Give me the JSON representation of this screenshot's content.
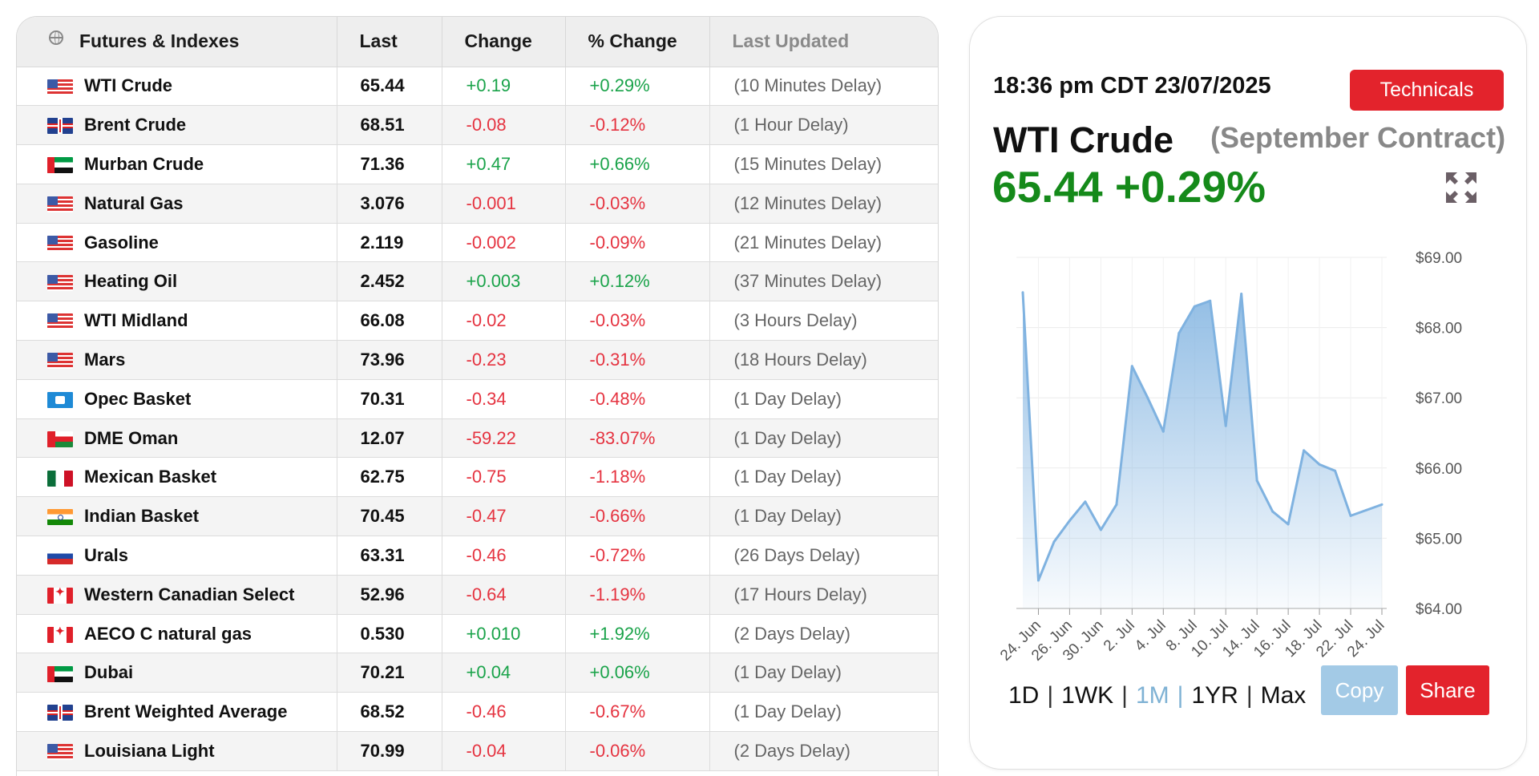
{
  "table": {
    "headers": [
      "Futures & Indexes",
      "Last",
      "Change",
      "% Change",
      "Last Updated"
    ],
    "rows": [
      {
        "flag": "us",
        "name": "WTI Crude",
        "last": "65.44",
        "change": "+0.19",
        "pct": "+0.29%",
        "updated": "(10 Minutes Delay)",
        "dir": "pos"
      },
      {
        "flag": "uk",
        "name": "Brent Crude",
        "last": "68.51",
        "change": "-0.08",
        "pct": "-0.12%",
        "updated": "(1 Hour Delay)",
        "dir": "neg"
      },
      {
        "flag": "ae",
        "name": "Murban Crude",
        "last": "71.36",
        "change": "+0.47",
        "pct": "+0.66%",
        "updated": "(15 Minutes Delay)",
        "dir": "pos"
      },
      {
        "flag": "us",
        "name": "Natural Gas",
        "last": "3.076",
        "change": "-0.001",
        "pct": "-0.03%",
        "updated": "(12 Minutes Delay)",
        "dir": "neg"
      },
      {
        "flag": "us",
        "name": "Gasoline",
        "last": "2.119",
        "change": "-0.002",
        "pct": "-0.09%",
        "updated": "(21 Minutes Delay)",
        "dir": "neg"
      },
      {
        "flag": "us",
        "name": "Heating Oil",
        "last": "2.452",
        "change": "+0.003",
        "pct": "+0.12%",
        "updated": "(37 Minutes Delay)",
        "dir": "pos"
      },
      {
        "flag": "us",
        "name": "WTI Midland",
        "last": "66.08",
        "change": "-0.02",
        "pct": "-0.03%",
        "updated": "(3 Hours Delay)",
        "dir": "neg"
      },
      {
        "flag": "us",
        "name": "Mars",
        "last": "73.96",
        "change": "-0.23",
        "pct": "-0.31%",
        "updated": "(18 Hours Delay)",
        "dir": "neg"
      },
      {
        "flag": "opec",
        "name": "Opec Basket",
        "last": "70.31",
        "change": "-0.34",
        "pct": "-0.48%",
        "updated": "(1 Day Delay)",
        "dir": "neg"
      },
      {
        "flag": "om",
        "name": "DME Oman",
        "last": "12.07",
        "change": "-59.22",
        "pct": "-83.07%",
        "updated": "(1 Day Delay)",
        "dir": "neg"
      },
      {
        "flag": "mx",
        "name": "Mexican Basket",
        "last": "62.75",
        "change": "-0.75",
        "pct": "-1.18%",
        "updated": "(1 Day Delay)",
        "dir": "neg"
      },
      {
        "flag": "in",
        "name": "Indian Basket",
        "last": "70.45",
        "change": "-0.47",
        "pct": "-0.66%",
        "updated": "(1 Day Delay)",
        "dir": "neg"
      },
      {
        "flag": "ru",
        "name": "Urals",
        "last": "63.31",
        "change": "-0.46",
        "pct": "-0.72%",
        "updated": "(26 Days Delay)",
        "dir": "neg"
      },
      {
        "flag": "ca",
        "name": "Western Canadian Select",
        "last": "52.96",
        "change": "-0.64",
        "pct": "-1.19%",
        "updated": "(17 Hours Delay)",
        "dir": "neg"
      },
      {
        "flag": "ca",
        "name": "AECO C natural gas",
        "last": "0.530",
        "change": "+0.010",
        "pct": "+1.92%",
        "updated": "(2 Days Delay)",
        "dir": "pos"
      },
      {
        "flag": "ae",
        "name": "Dubai",
        "last": "70.21",
        "change": "+0.04",
        "pct": "+0.06%",
        "updated": "(1 Day Delay)",
        "dir": "pos"
      },
      {
        "flag": "uk",
        "name": "Brent Weighted Average",
        "last": "68.52",
        "change": "-0.46",
        "pct": "-0.67%",
        "updated": "(1 Day Delay)",
        "dir": "neg"
      },
      {
        "flag": "us",
        "name": "Louisiana Light",
        "last": "70.99",
        "change": "-0.04",
        "pct": "-0.06%",
        "updated": "(2 Days Delay)",
        "dir": "neg"
      }
    ]
  },
  "panel": {
    "timestamp": "18:36 pm CDT 23/07/2025",
    "technicals_label": "Technicals",
    "instrument": "WTI Crude",
    "contract": "(September Contract)",
    "quote": "65.44 +0.29%",
    "ranges": [
      "1D",
      "1WK",
      "1M",
      "1YR",
      "Max"
    ],
    "active_range": "1M",
    "separator": "|",
    "copy_label": "Copy",
    "share_label": "Share"
  },
  "colors": {
    "positive": "#1aa34a",
    "negative": "#e53340",
    "quote_green": "#158a1a",
    "brand_red": "#e3232c",
    "copy_blue": "#a3cae6",
    "line_blue": "#7fb2e0"
  },
  "chart_data": {
    "type": "area",
    "x_tick_labels": [
      "24. Jun",
      "26. Jun",
      "30. Jun",
      "2. Jul",
      "4. Jul",
      "8. Jul",
      "10. Jul",
      "14. Jul",
      "16. Jul",
      "18. Jul",
      "22. Jul",
      "24. Jul"
    ],
    "y_tick_labels": [
      "$69.00",
      "$68.00",
      "$67.00",
      "$66.00",
      "$65.00",
      "$64.00"
    ],
    "ylim": [
      64,
      69
    ],
    "series": [
      {
        "x": [
          "23. Jun",
          "24. Jun",
          "25. Jun",
          "26. Jun",
          "27. Jun",
          "30. Jun",
          "1. Jul",
          "2. Jul",
          "3. Jul",
          "4. Jul",
          "7. Jul",
          "8. Jul",
          "9. Jul",
          "10. Jul",
          "11. Jul",
          "14. Jul",
          "15. Jul",
          "16. Jul",
          "17. Jul",
          "18. Jul",
          "21. Jul",
          "22. Jul",
          "23. Jul",
          "24. Jul"
        ],
        "values": [
          68.5,
          64.4,
          64.95,
          65.25,
          65.52,
          65.12,
          65.48,
          67.45,
          67.0,
          66.52,
          67.92,
          68.3,
          68.38,
          66.6,
          68.48,
          65.82,
          65.38,
          65.2,
          66.25,
          66.05,
          65.96,
          65.32,
          65.4,
          65.48
        ]
      }
    ],
    "grid": true
  }
}
